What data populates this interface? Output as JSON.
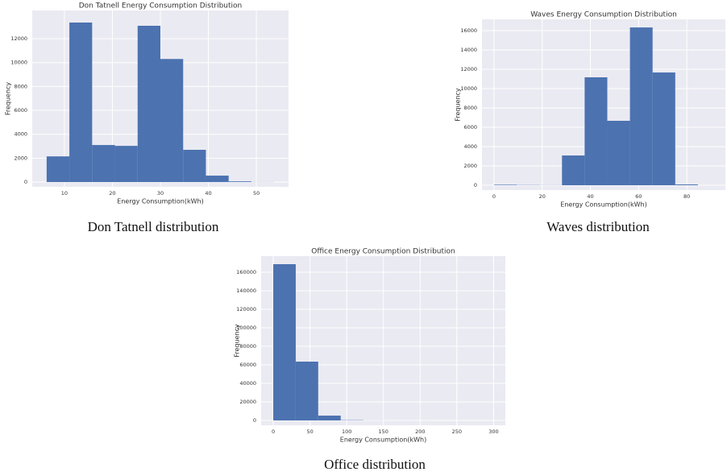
{
  "chart_data": [
    {
      "type": "histogram",
      "title": "Don Tatnell Energy Consumption Distribution",
      "xlabel": "Energy Consumption(kWh)",
      "ylabel": "Frequency",
      "bins": [
        6.3,
        11.04,
        15.78,
        20.52,
        25.26,
        30.0,
        34.74,
        39.48,
        44.22,
        48.96,
        53.7
      ],
      "values": [
        2150,
        13350,
        3100,
        3030,
        13080,
        10300,
        2700,
        540,
        60,
        10
      ],
      "color": "#4c72b0",
      "xlim": [
        3.3,
        56.7
      ],
      "ylim": [
        -400,
        14360
      ],
      "xticks": [
        10,
        20,
        30,
        40,
        50
      ],
      "yticks": [
        0,
        2000,
        4000,
        6000,
        8000,
        10000,
        12000
      ],
      "grid": true,
      "caption": "Don Tatnell distribution"
    },
    {
      "type": "histogram",
      "title": "Waves Energy Consumption Distribution",
      "xlabel": "Energy Consumption(kWh)",
      "ylabel": "Frequency",
      "bins": [
        0,
        9.4,
        18.8,
        28.2,
        37.6,
        47.0,
        56.4,
        65.8,
        75.2,
        84.6
      ],
      "values": [
        50,
        20,
        10,
        3080,
        11170,
        6670,
        16330,
        11670,
        80
      ],
      "color": "#4c72b0",
      "xlim": [
        -5,
        96
      ],
      "ylim": [
        -500,
        17170
      ],
      "xticks": [
        0,
        20,
        40,
        60,
        80
      ],
      "yticks": [
        0,
        2000,
        4000,
        6000,
        8000,
        10000,
        12000,
        14000,
        16000
      ],
      "grid": true,
      "caption": "Waves distribution"
    },
    {
      "type": "histogram",
      "title": "Office Energy Consumption Distribution",
      "xlabel": "Energy Consumption(kWh)",
      "ylabel": "Frequency",
      "bins": [
        0,
        30.6,
        61.2,
        91.8,
        122.4,
        153,
        183.6,
        214.2,
        244.8,
        275.4,
        306
      ],
      "values": [
        168700,
        63500,
        5200,
        300,
        50,
        20,
        10,
        5,
        3,
        2
      ],
      "color": "#4c72b0",
      "xlim": [
        -16.5,
        316
      ],
      "ylim": [
        -5200,
        177400
      ],
      "xticks": [
        0,
        50,
        100,
        150,
        200,
        250,
        300
      ],
      "yticks": [
        0,
        20000,
        40000,
        60000,
        80000,
        100000,
        120000,
        140000,
        160000
      ],
      "grid": true,
      "caption": "Office distribution"
    }
  ]
}
